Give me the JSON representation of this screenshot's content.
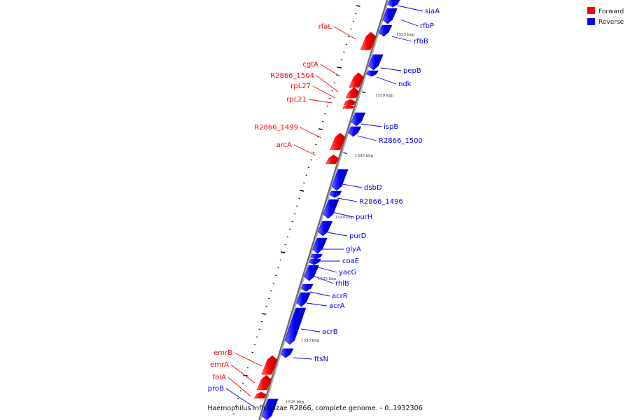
{
  "legend": [
    {
      "label": "Forward",
      "color": "#ff0000"
    },
    {
      "label": "Reverse",
      "color": "#0000ff"
    }
  ],
  "footer": "Haemophilus influenzae R2866, complete genome. - 0..1932306",
  "colors": {
    "forward": "#ff0000",
    "reverse": "#0000ff",
    "axis": "#8c8c8c"
  },
  "scale_marks": [
    {
      "label": "1555 kbp"
    },
    {
      "label": "1550 kbp"
    },
    {
      "label": "1545 kbp"
    },
    {
      "label": "1540 kbp"
    },
    {
      "label": "1535 kbp"
    },
    {
      "label": "1530 kbp"
    },
    {
      "label": "1525 kbp"
    }
  ],
  "genes": [
    {
      "name": "siaA",
      "strand": "reverse"
    },
    {
      "name": "rfbP",
      "strand": "reverse"
    },
    {
      "name": "rfbB",
      "strand": "reverse"
    },
    {
      "name": "rfaL",
      "strand": "forward"
    },
    {
      "name": "pepB",
      "strand": "reverse"
    },
    {
      "name": "ndk",
      "strand": "reverse"
    },
    {
      "name": "cgtA",
      "strand": "forward"
    },
    {
      "name": "R2866_1504",
      "strand": "forward"
    },
    {
      "name": "rpL27",
      "strand": "forward"
    },
    {
      "name": "rpL21",
      "strand": "forward"
    },
    {
      "name": "ispB",
      "strand": "reverse"
    },
    {
      "name": "R2866_1500",
      "strand": "reverse"
    },
    {
      "name": "R2866_1499",
      "strand": "forward"
    },
    {
      "name": "arcA",
      "strand": "forward"
    },
    {
      "name": "dsbD",
      "strand": "reverse"
    },
    {
      "name": "R2866_1496",
      "strand": "reverse"
    },
    {
      "name": "purH",
      "strand": "reverse"
    },
    {
      "name": "purD",
      "strand": "reverse"
    },
    {
      "name": "glyA",
      "strand": "reverse"
    },
    {
      "name": "coaE",
      "strand": "reverse"
    },
    {
      "name": "yacG",
      "strand": "reverse"
    },
    {
      "name": "rhlB",
      "strand": "reverse"
    },
    {
      "name": "acrR",
      "strand": "reverse"
    },
    {
      "name": "acrA",
      "strand": "reverse"
    },
    {
      "name": "acrB",
      "strand": "reverse"
    },
    {
      "name": "ftsN",
      "strand": "reverse"
    },
    {
      "name": "emrB",
      "strand": "forward"
    },
    {
      "name": "emrA",
      "strand": "forward"
    },
    {
      "name": "folA",
      "strand": "forward"
    },
    {
      "name": "proB",
      "strand": "reverse"
    }
  ]
}
